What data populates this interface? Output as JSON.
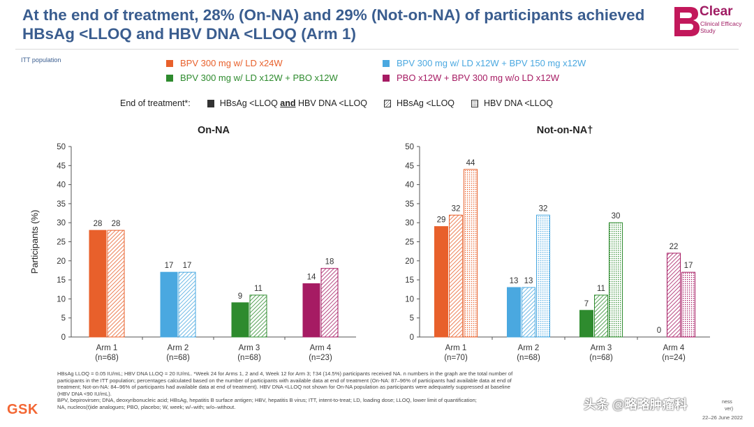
{
  "title": "At the end of treatment, 28% (On-NA) and 29% (Not-on-NA) of participants achieved HBsAg <LLOQ and HBV DNA <LLOQ (Arm 1)",
  "logo": {
    "name": "Clear",
    "subtitle": "Clinical Efficacy Study"
  },
  "population_label": "ITT population",
  "arm_legend": [
    {
      "label": "BPV 300 mg w/ LD x24W",
      "color": "#e8602b"
    },
    {
      "label": "BPV 300 mg w/ LD x12W + BPV 150 mg x12W",
      "color": "#4aa8e0"
    },
    {
      "label": "BPV 300 mg w/ LD x12W + PBO x12W",
      "color": "#2e8b2e"
    },
    {
      "label": "PBO x12W + BPV 300 mg w/o LD x12W",
      "color": "#a61b63"
    }
  ],
  "endpoint_legend": {
    "prefix": "End of treatment*:",
    "items": [
      {
        "pre": "HBsAg <LLOQ ",
        "bold": "and",
        "post": " HBV DNA <LLOQ",
        "fill": "solid"
      },
      {
        "pre": "HBsAg <LLOQ",
        "bold": "",
        "post": "",
        "fill": "hatch"
      },
      {
        "pre": "HBV DNA <LLOQ",
        "bold": "",
        "post": "",
        "fill": "dots"
      }
    ]
  },
  "chart_data": [
    {
      "type": "bar",
      "title": "On-NA",
      "ylabel": "Participants (%)",
      "ylim": [
        0,
        50
      ],
      "yticks": [
        0,
        5,
        10,
        15,
        20,
        25,
        30,
        35,
        40,
        45,
        50
      ],
      "categories": [
        "Arm 1",
        "Arm 2",
        "Arm 3",
        "Arm 4"
      ],
      "n_labels": [
        "(n=68)",
        "(n=68)",
        "(n=68)",
        "(n=23)"
      ],
      "series": [
        {
          "name": "HBsAg <LLOQ and HBV DNA <LLOQ",
          "fill": "solid",
          "values": [
            28,
            17,
            9,
            14
          ]
        },
        {
          "name": "HBsAg <LLOQ",
          "fill": "hatch",
          "values": [
            28,
            17,
            11,
            18
          ]
        }
      ]
    },
    {
      "type": "bar",
      "title": "Not-on-NA†",
      "ylabel": "",
      "ylim": [
        0,
        50
      ],
      "yticks": [
        0,
        5,
        10,
        15,
        20,
        25,
        30,
        35,
        40,
        45,
        50
      ],
      "categories": [
        "Arm 1",
        "Arm 2",
        "Arm 3",
        "Arm 4"
      ],
      "n_labels": [
        "(n=70)",
        "(n=68)",
        "(n=68)",
        "(n=24)"
      ],
      "series": [
        {
          "name": "HBsAg <LLOQ and HBV DNA <LLOQ",
          "fill": "solid",
          "values": [
            29,
            13,
            7,
            0
          ]
        },
        {
          "name": "HBsAg <LLOQ",
          "fill": "hatch",
          "values": [
            32,
            13,
            11,
            22
          ]
        },
        {
          "name": "HBV DNA <LLOQ",
          "fill": "dots",
          "values": [
            44,
            32,
            30,
            17
          ]
        }
      ]
    }
  ],
  "footnote_lines": [
    "HBsAg LLOQ = 0.05 IU/mL; HBV DNA LLOQ = 20 IU/mL. *Week 24 for Arms 1, 2 and 4, Week 12 for Arm 3; †34 (14.5%) participants received NA. n numbers in the graph are the total number of",
    "participants in the ITT population; percentages calculated based on the number of participants with available data at end of treatment (On-NA: 87–96% of participants had available data at end of",
    "treatment; Not-on-NA: 84–96% of participants had available data at end of treatment). HBV DNA <LLOQ not shown for On-NA population as participants were adequately suppressed at baseline",
    "(HBV DNA <90 IU/mL).",
    "BPV, bepirovirsen; DNA, deoxyribonucleic acid; HBsAg, hepatitis B surface antigen; HBV, hepatitis B virus; ITT, intent-to-treat; LD, loading dose; LLOQ, lower limit of quantification;",
    "NA, nucleos(t)ide analogues; PBO, placebo; W, week; w/–with; w/o–without."
  ],
  "sponsor_logo": "GSK",
  "watermark": "头条 @略略肿瘤科",
  "corner_text": [
    "ness",
    "ver)"
  ],
  "date": "22–26 June 2022"
}
